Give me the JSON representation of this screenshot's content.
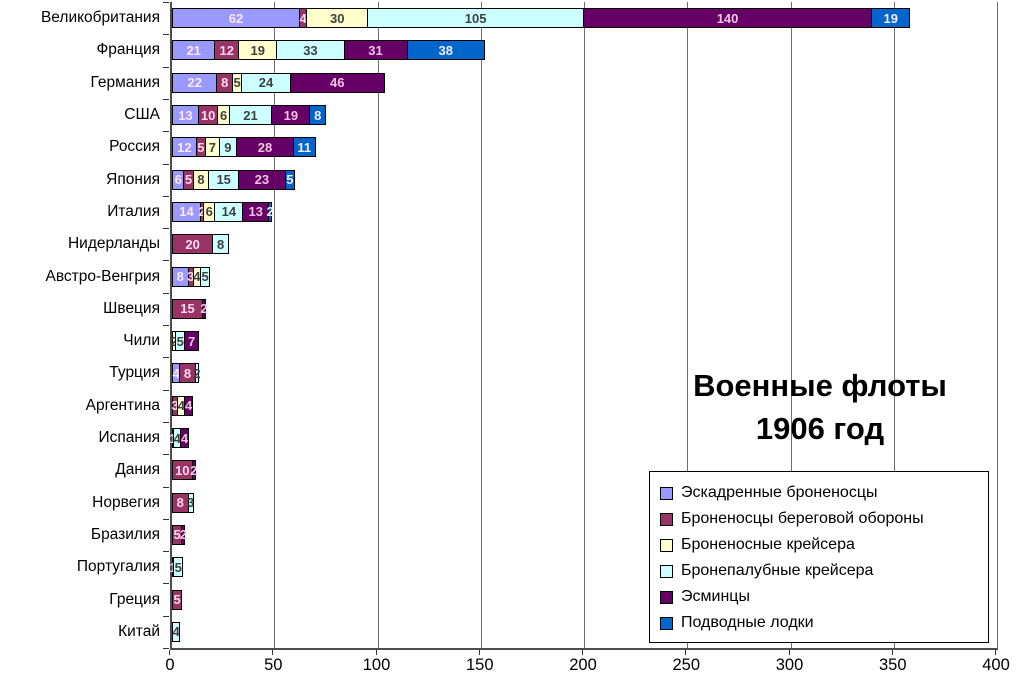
{
  "chart_data": {
    "type": "bar",
    "orientation": "horizontal",
    "stacked": true,
    "title": "Военные флоты 1906 год",
    "title_lines": [
      "Военные флоты",
      "1906 год"
    ],
    "xlabel": "",
    "ylabel": "",
    "xlim": [
      0,
      400
    ],
    "x_ticks": [
      0,
      50,
      100,
      150,
      200,
      250,
      300,
      350,
      400
    ],
    "grid": true,
    "legend_position": "inside-bottom-right",
    "categories": [
      "Великобритания",
      "Франция",
      "Германия",
      "США",
      "Россия",
      "Япония",
      "Италия",
      "Нидерланды",
      "Австро-Венгрия",
      "Швеция",
      "Чили",
      "Турция",
      "Аргентина",
      "Испания",
      "Дания",
      "Норвегия",
      "Бразилия",
      "Португалия",
      "Греция",
      "Китай"
    ],
    "series": [
      {
        "name": "Эскадренные броненосцы",
        "color": "#9999FF",
        "label_color": "#ffe6f7",
        "values": [
          62,
          21,
          22,
          13,
          12,
          6,
          14,
          0,
          8,
          0,
          0,
          4,
          0,
          1,
          0,
          0,
          0,
          0,
          0,
          0
        ]
      },
      {
        "name": "Броненосцы береговой обороны",
        "color": "#993366",
        "label_color": "#ffd9f0",
        "values": [
          4,
          12,
          8,
          10,
          5,
          5,
          2,
          20,
          3,
          15,
          0,
          8,
          3,
          0,
          10,
          8,
          5,
          1,
          5,
          0
        ]
      },
      {
        "name": "Броненосные крейсера",
        "color": "#FFFFCC",
        "label_color": "#3f3f3f",
        "values": [
          30,
          19,
          5,
          6,
          7,
          8,
          6,
          0,
          4,
          0,
          2,
          0,
          4,
          0,
          0,
          0,
          0,
          0,
          0,
          0
        ]
      },
      {
        "name": "Бронепалубные крейсера",
        "color": "#CCFFFF",
        "label_color": "#3f3f3f",
        "values": [
          105,
          33,
          24,
          21,
          9,
          15,
          14,
          8,
          5,
          0,
          5,
          2,
          0,
          4,
          0,
          3,
          0,
          5,
          0,
          4
        ]
      },
      {
        "name": "Эсминцы",
        "color": "#660066",
        "label_color": "#f3c3e2",
        "values": [
          140,
          31,
          46,
          19,
          28,
          23,
          13,
          0,
          0,
          2,
          7,
          0,
          4,
          4,
          2,
          0,
          2,
          0,
          0,
          0
        ]
      },
      {
        "name": "Подводные лодки",
        "color": "#0066CC",
        "label_color": "#f6ecf7",
        "values": [
          19,
          38,
          0,
          8,
          11,
          5,
          2,
          0,
          0,
          0,
          0,
          0,
          0,
          0,
          0,
          0,
          0,
          0,
          0,
          0
        ]
      }
    ]
  }
}
